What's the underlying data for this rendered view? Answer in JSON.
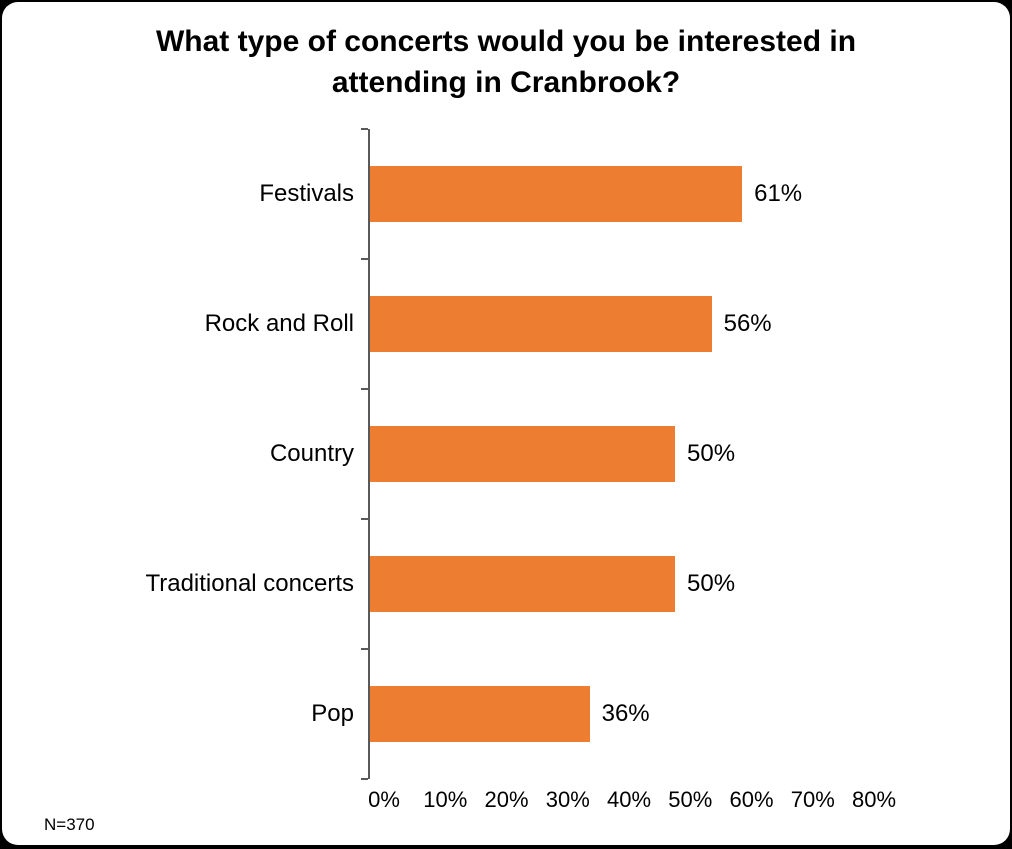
{
  "chart_data": {
    "type": "bar",
    "orientation": "horizontal",
    "title": "What type of concerts would you be interested in attending in Cranbrook?",
    "categories": [
      "Festivals",
      "Rock and Roll",
      "Country",
      "Traditional concerts",
      "Pop"
    ],
    "values": [
      61,
      56,
      50,
      50,
      36
    ],
    "value_labels": [
      "61%",
      "56%",
      "50%",
      "50%",
      "36%"
    ],
    "xlim": [
      0,
      80
    ],
    "x_ticks": [
      "0%",
      "10%",
      "20%",
      "30%",
      "40%",
      "50%",
      "60%",
      "70%",
      "80%"
    ],
    "xlabel": "",
    "ylabel": "",
    "legend": "none",
    "grid": "off",
    "note": "N=370",
    "bar_color": "#ED7D31",
    "axis_color": "#595959",
    "background_color": "#ffffff"
  }
}
